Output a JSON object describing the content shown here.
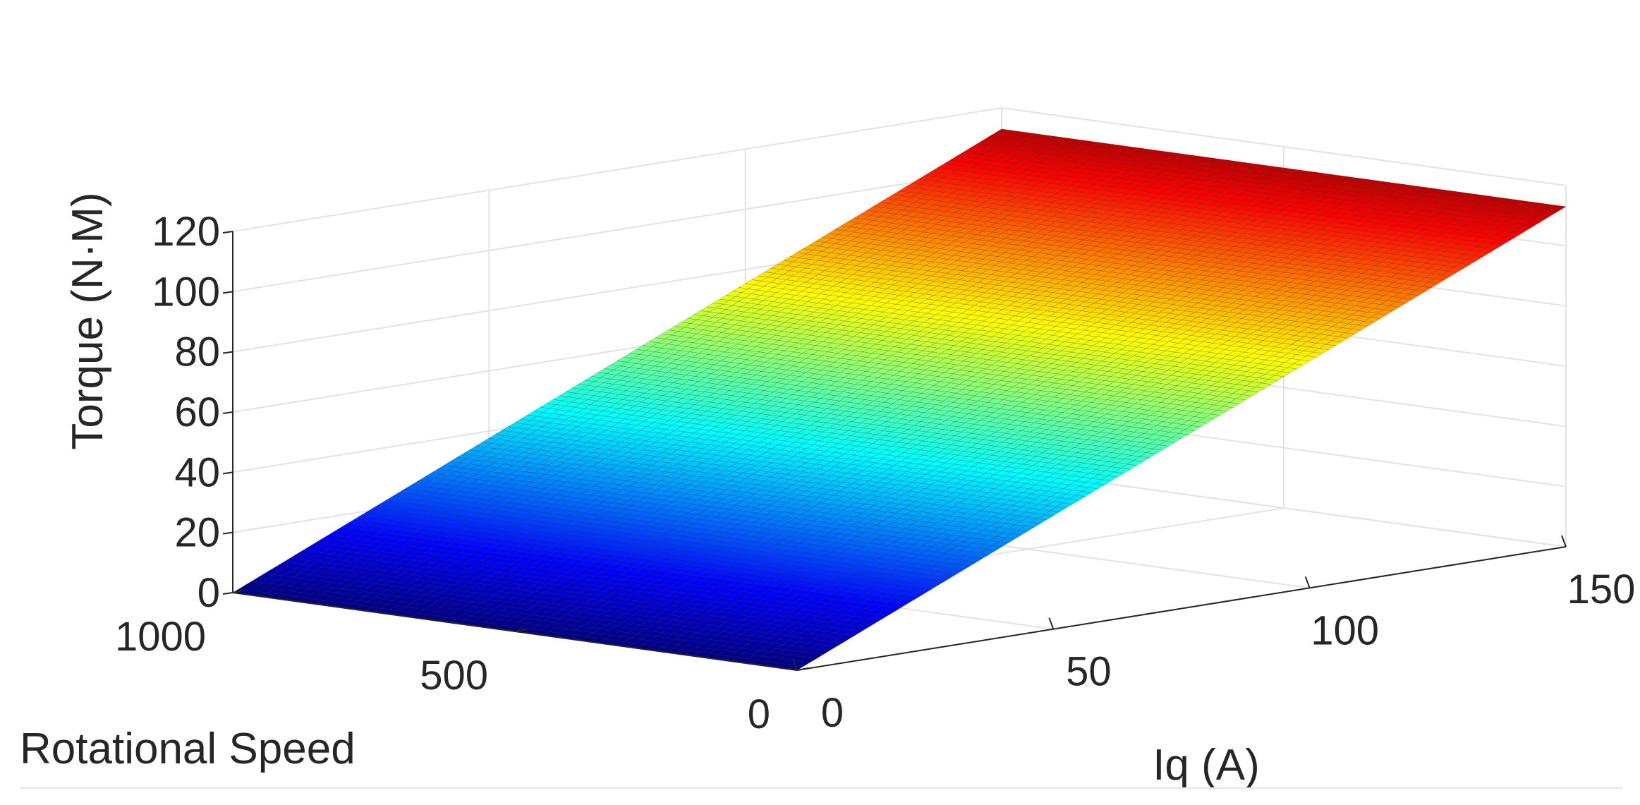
{
  "chart_data": {
    "type": "surface",
    "title": "",
    "xlabel": "Iq (A)",
    "ylabel": "Rotational Speed",
    "zlabel": "Torque (N·M)",
    "x_ticks": [
      "0",
      "50",
      "100",
      "150"
    ],
    "y_ticks": [
      "0",
      "500",
      "1000"
    ],
    "z_ticks": [
      "0",
      "20",
      "40",
      "60",
      "80",
      "100",
      "120"
    ],
    "xlim": [
      0,
      150
    ],
    "ylim": [
      0,
      1000
    ],
    "zlim": [
      0,
      120
    ],
    "x_range_data": [
      0,
      150
    ],
    "y_range_data": [
      0,
      1000
    ],
    "torque_per_amp": 0.7533,
    "corners": [
      {
        "iq": 0,
        "speed": 0,
        "torque": 0
      },
      {
        "iq": 0,
        "speed": 1000,
        "torque": 0
      },
      {
        "iq": 150,
        "speed": 0,
        "torque": 113
      },
      {
        "iq": 150,
        "speed": 1000,
        "torque": 113
      }
    ],
    "colormap": "jet",
    "grid": true,
    "box": false
  }
}
